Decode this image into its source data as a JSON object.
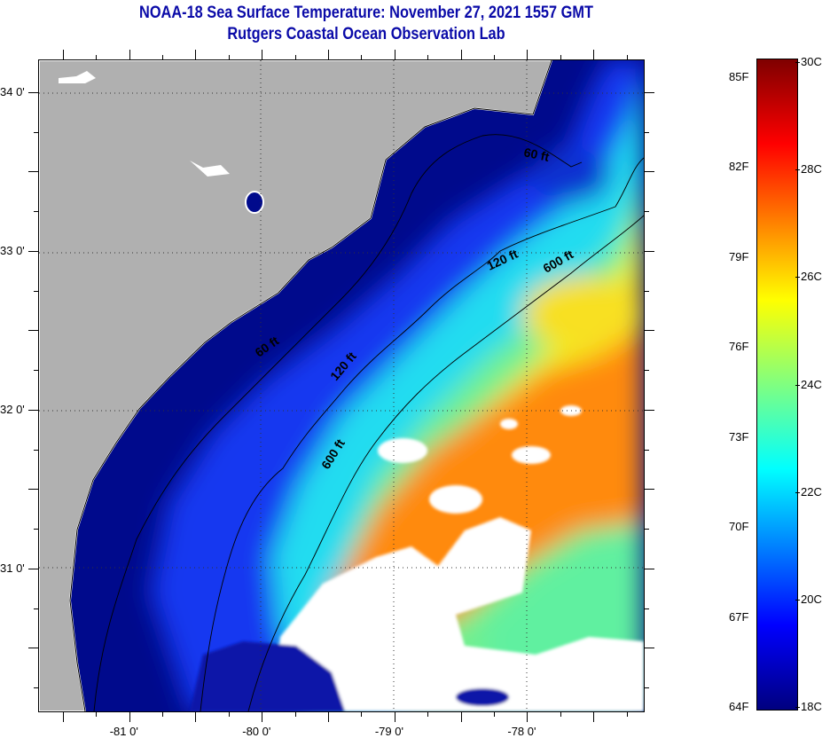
{
  "header": {
    "title": "NOAA-18 Sea Surface Temperature:  November 27, 2021 1557 GMT",
    "subtitle": "Rutgers Coastal Ocean Observation Lab"
  },
  "map": {
    "lon_range": [
      -81.68,
      -77.12
    ],
    "lat_range": [
      30.1,
      34.2
    ],
    "lon_ticks": [
      {
        "value": -81,
        "label": "-81 0'"
      },
      {
        "value": -80,
        "label": "-80 0'"
      },
      {
        "value": -79,
        "label": "-79 0'"
      },
      {
        "value": -78,
        "label": "-78 0'"
      }
    ],
    "lat_ticks": [
      {
        "value": 34,
        "label": "34 0'"
      },
      {
        "value": 33,
        "label": "33 0'"
      },
      {
        "value": 32,
        "label": "32 0'"
      },
      {
        "value": 31,
        "label": "31 0'"
      }
    ],
    "contour_labels": {
      "c60a": "60 ft",
      "c60b": "60 ft",
      "c120a": "120 ft",
      "c120b": "120 ft",
      "c600a": "600 ft",
      "c600b": "600 ft"
    },
    "colors": {
      "land": "#b0b0b0",
      "cloud": "#ffffff",
      "coast": "#000000"
    }
  },
  "colorbar": {
    "celsius_range": [
      18,
      30
    ],
    "fahrenheit_labels": [
      "64F",
      "67F",
      "70F",
      "73F",
      "76F",
      "79F",
      "82F",
      "85F"
    ],
    "celsius_labels": [
      "18C",
      "20C",
      "22C",
      "24C",
      "26C",
      "28C",
      "30C"
    ]
  }
}
